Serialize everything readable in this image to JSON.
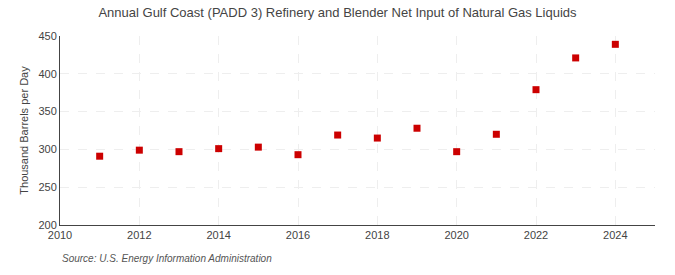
{
  "chart_data": {
    "type": "scatter",
    "title": "Annual Gulf Coast (PADD 3) Refinery and Blender Net Input of Natural Gas Liquids",
    "ylabel": "Thousand Barrels per Day",
    "annotations": [
      "Source: U.S. Energy Information Administration"
    ],
    "x": [
      2011,
      2012,
      2013,
      2014,
      2015,
      2016,
      2017,
      2018,
      2019,
      2020,
      2021,
      2022,
      2023,
      2024
    ],
    "values": [
      291,
      299,
      297,
      301,
      303,
      293,
      319,
      315,
      328,
      297,
      320,
      379,
      421,
      439
    ],
    "color": "#cc0000",
    "marker": "square",
    "xlim": [
      2010,
      2025
    ],
    "xticks": [
      2010,
      2012,
      2014,
      2016,
      2018,
      2020,
      2022,
      2024
    ],
    "ylim": [
      200,
      450
    ],
    "yticks": [
      200,
      250,
      300,
      350,
      400,
      450
    ],
    "grid": true
  }
}
